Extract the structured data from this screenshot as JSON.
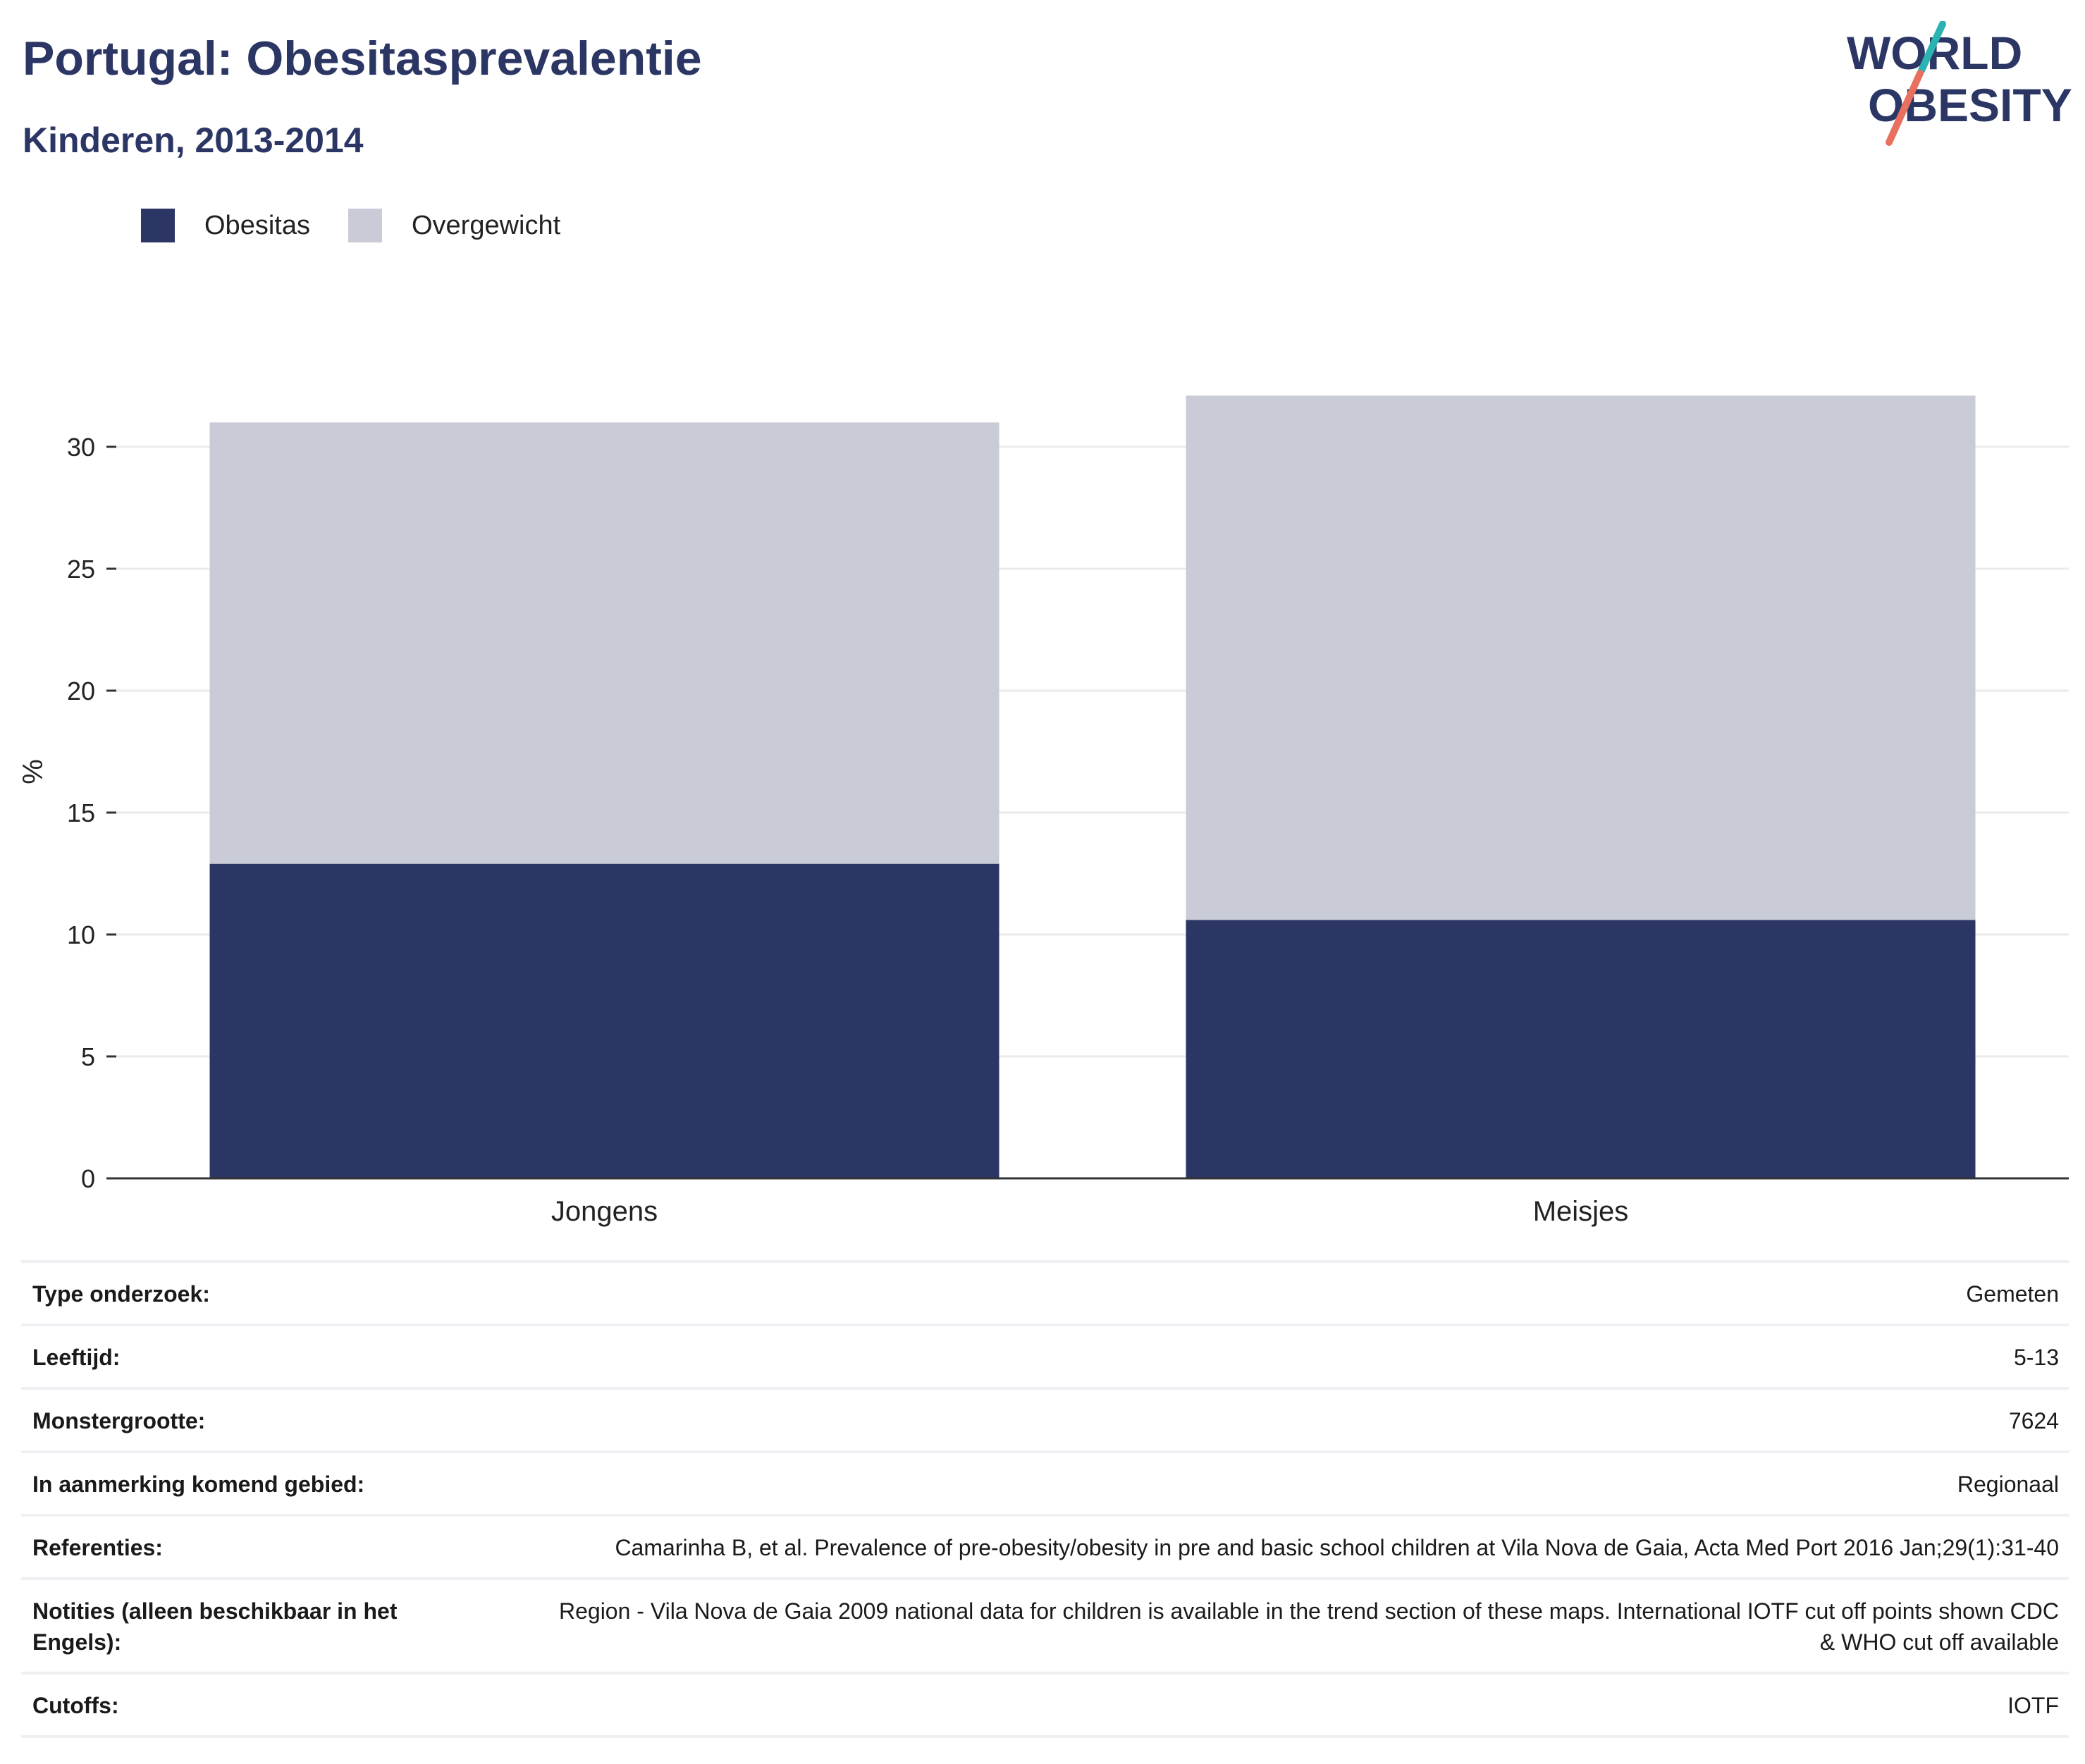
{
  "header": {
    "title": "Portugal: Obesitasprevalentie",
    "subtitle": "Kinderen, 2013-2014"
  },
  "logo": {
    "line1": "WORLD",
    "line2": "OBESITY"
  },
  "colors": {
    "obesitas": "#2b3664",
    "overgewicht": "#c9cbd6",
    "title": "#2b3664",
    "grid": "#ebebeb",
    "logo_teal": "#2bb3b1",
    "logo_coral": "#e8705f"
  },
  "chart_data": {
    "type": "bar",
    "stacked": true,
    "categories": [
      "Jongens",
      "Meisjes"
    ],
    "series": [
      {
        "name": "Obesitas",
        "values": [
          12.9,
          10.6
        ]
      },
      {
        "name": "Overgewicht",
        "values": [
          18.1,
          21.5
        ]
      }
    ],
    "ylabel": "%",
    "ylim": [
      0,
      32.5
    ],
    "yticks": [
      0,
      5,
      10,
      15,
      20,
      25,
      30
    ],
    "grid": true,
    "legend": "top-left"
  },
  "details": [
    {
      "label": "Type onderzoek:",
      "value": "Gemeten"
    },
    {
      "label": "Leeftijd:",
      "value": "5-13"
    },
    {
      "label": "Monstergrootte:",
      "value": "7624"
    },
    {
      "label": "In aanmerking komend gebied:",
      "value": "Regionaal"
    },
    {
      "label": "Referenties:",
      "value": "Camarinha B, et al. Prevalence of pre-obesity/obesity in pre and basic school children at Vila Nova de Gaia, Acta Med Port 2016 Jan;29(1):31-40"
    },
    {
      "label": "Notities (alleen beschikbaar in het Engels):",
      "value": "Region - Vila Nova de Gaia 2009 national data for children is available in the trend section of these maps. International IOTF cut off points shown CDC & WHO cut off available"
    },
    {
      "label": "Cutoffs:",
      "value": "IOTF"
    }
  ]
}
